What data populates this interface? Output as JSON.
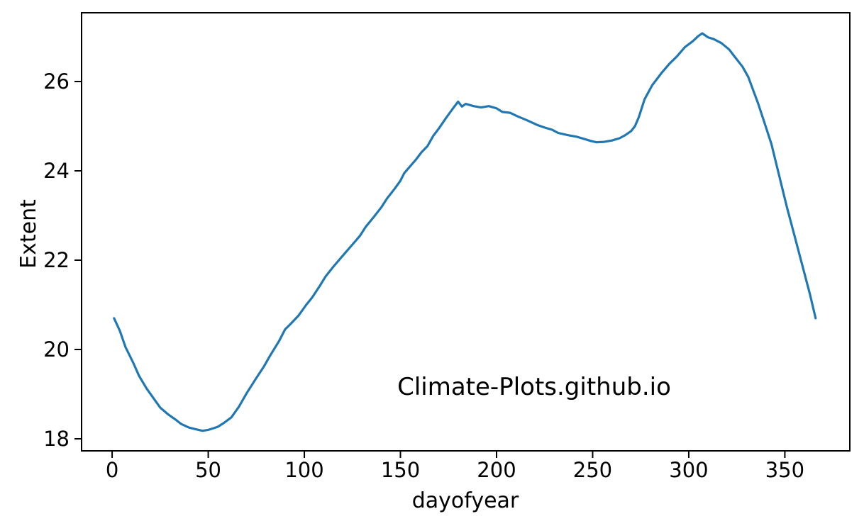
{
  "chart_data": {
    "type": "line",
    "title": "",
    "xlabel": "dayofyear",
    "ylabel": "Extent",
    "annotation": "Climate-Plots.github.io",
    "grid": false,
    "legend": "none",
    "background_color": "#ffffff",
    "axis_color": "#000000",
    "xlim": [
      -15.9,
      383.8
    ],
    "ylim": [
      17.73,
      27.54
    ],
    "xticks": [
      0,
      50,
      100,
      150,
      200,
      250,
      300,
      350
    ],
    "yticks": [
      18,
      20,
      22,
      24,
      26
    ],
    "series": [
      {
        "name": "Extent",
        "color": "#1f77b4",
        "x": [
          1,
          4,
          7,
          11,
          14,
          18,
          22,
          25,
          29,
          33,
          36,
          40,
          44,
          47,
          50,
          53,
          55,
          58,
          62,
          66,
          70,
          75,
          79,
          82,
          87,
          90,
          93,
          97,
          101,
          104,
          108,
          111,
          115,
          118,
          121,
          125,
          129,
          132,
          136,
          140,
          143,
          147,
          150,
          152,
          155,
          158,
          161,
          164,
          167,
          170,
          174,
          177,
          180,
          182,
          184,
          188,
          192,
          196,
          200,
          203,
          207,
          211,
          216,
          219,
          221,
          225,
          229,
          232,
          237,
          242,
          246,
          249,
          252,
          256,
          260,
          264,
          267,
          270,
          272,
          274,
          277,
          281,
          286,
          290,
          294,
          298,
          302,
          305,
          307,
          310,
          313,
          317,
          321,
          324,
          328,
          331,
          334,
          336,
          340,
          343,
          347,
          351,
          355,
          359,
          363,
          366
        ],
        "y": [
          20.7,
          20.42,
          20.05,
          19.7,
          19.41,
          19.12,
          18.88,
          18.7,
          18.55,
          18.43,
          18.33,
          18.25,
          18.21,
          18.18,
          18.2,
          18.24,
          18.27,
          18.35,
          18.48,
          18.72,
          19.02,
          19.36,
          19.62,
          19.85,
          20.2,
          20.45,
          20.58,
          20.76,
          21.0,
          21.16,
          21.42,
          21.63,
          21.85,
          22.0,
          22.15,
          22.35,
          22.55,
          22.75,
          22.96,
          23.18,
          23.38,
          23.6,
          23.78,
          23.95,
          24.1,
          24.25,
          24.42,
          24.55,
          24.78,
          24.95,
          25.2,
          25.38,
          25.55,
          25.44,
          25.5,
          25.45,
          25.42,
          25.45,
          25.4,
          25.32,
          25.3,
          25.22,
          25.13,
          25.07,
          25.03,
          24.97,
          24.92,
          24.85,
          24.8,
          24.76,
          24.71,
          24.67,
          24.64,
          24.65,
          24.68,
          24.73,
          24.8,
          24.89,
          25.0,
          25.2,
          25.6,
          25.92,
          26.2,
          26.4,
          26.57,
          26.77,
          26.9,
          27.02,
          27.08,
          26.99,
          26.95,
          26.86,
          26.72,
          26.55,
          26.33,
          26.1,
          25.75,
          25.52,
          25.0,
          24.6,
          23.9,
          23.2,
          22.55,
          21.9,
          21.25,
          20.7
        ]
      }
    ]
  }
}
